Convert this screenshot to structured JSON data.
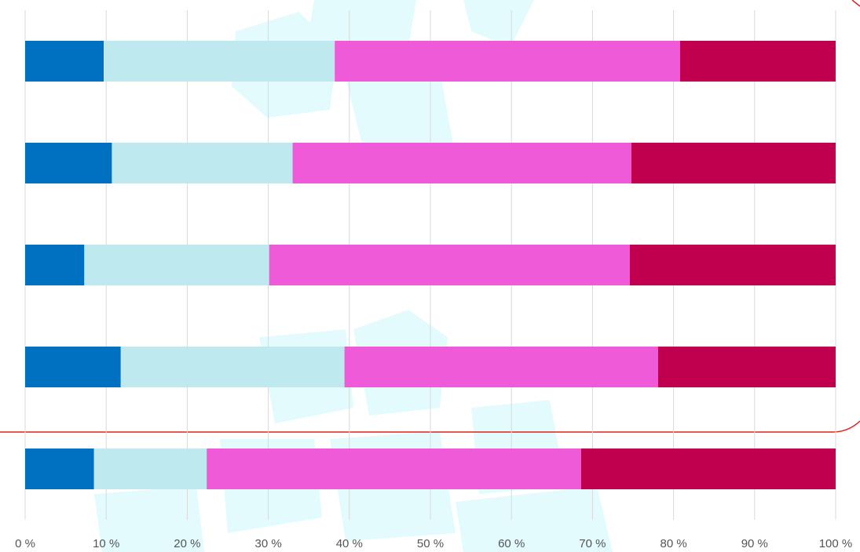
{
  "chart_data": {
    "type": "stacked-bar-horizontal",
    "categories": [
      null,
      null,
      null,
      null,
      null
    ],
    "series": [
      {
        "color": "#0070c0",
        "values": [
          9.7,
          10.7,
          7.3,
          11.8,
          8.5
        ]
      },
      {
        "color": "#bde9ef",
        "values": [
          28.5,
          22.3,
          22.8,
          27.6,
          13.9
        ]
      },
      {
        "color": "#ef5ad9",
        "values": [
          42.6,
          41.8,
          44.5,
          38.7,
          46.2
        ]
      },
      {
        "color": "#c0004f",
        "values": [
          19.2,
          25.2,
          25.4,
          21.9,
          31.4
        ]
      }
    ],
    "xlim": [
      0,
      100
    ],
    "xticks": [
      {
        "value": 0,
        "label": "0 %"
      },
      {
        "value": 10,
        "label": "10 %"
      },
      {
        "value": 20,
        "label": "20 %"
      },
      {
        "value": 30,
        "label": "30 %"
      },
      {
        "value": 40,
        "label": "40 %"
      },
      {
        "value": 50,
        "label": "50 %"
      },
      {
        "value": 60,
        "label": "60 %"
      },
      {
        "value": 70,
        "label": "70 %"
      },
      {
        "value": 80,
        "label": "80 %"
      },
      {
        "value": 90,
        "label": "90 %"
      },
      {
        "value": 100,
        "label": "100 %"
      }
    ],
    "grid": true
  }
}
